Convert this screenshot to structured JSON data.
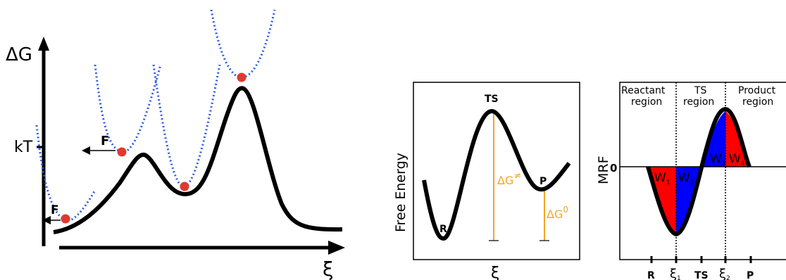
{
  "panel_a": {
    "y_label": "ΔG",
    "kt_label": "kT",
    "x_label": "ξ",
    "force_label_1": "F",
    "force_label_2": "F"
  },
  "panel_b": {
    "y_label": "Free Energy",
    "x_label": "ξ",
    "ts_label": "TS",
    "r_label": "R",
    "p_label": "P",
    "dg_ts_label": "ΔG",
    "dg_ts_sup": "≠",
    "dg_0_label": "ΔG",
    "dg_0_sup": "0"
  },
  "panel_c": {
    "y_label": "MRF",
    "zero_label": "0",
    "region_reactant_line1": "Reactant",
    "region_reactant_line2": "region",
    "region_ts_line1": "TS",
    "region_ts_line2": "region",
    "region_product_line1": "Product",
    "region_product_line2": "region",
    "w1": "W",
    "w1_sub": "1",
    "w2": "W",
    "w2_sub": "2",
    "w3": "W",
    "w3_sub": "3",
    "w4": "W",
    "w4_sub": "4",
    "tick_r": "R",
    "tick_xi1": "ξ",
    "tick_xi1_sub": "1",
    "tick_ts": "TS",
    "tick_xi2": "ξ",
    "tick_xi2_sub": "2",
    "tick_p": "P"
  },
  "colors": {
    "curve": "#000000",
    "bias": "#2E5BE0",
    "particle": "#E03A2E",
    "annotation": "#F5A623",
    "fill_red": "#FF0000",
    "fill_blue": "#0000FF"
  }
}
